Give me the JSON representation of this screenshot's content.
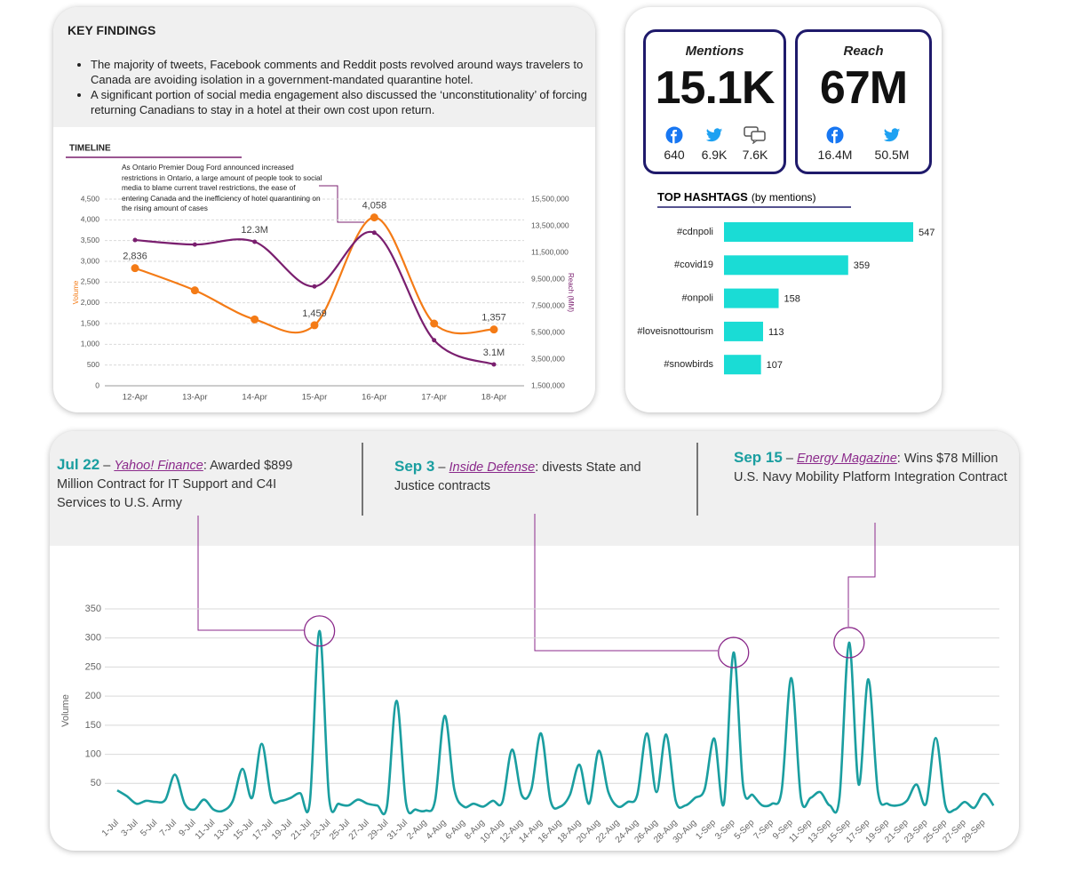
{
  "key_findings": {
    "title": "KEY FINDINGS",
    "bullets": [
      "The majority of tweets, Facebook comments and Reddit posts revolved around ways travelers to Canada are avoiding isolation in a government-mandated quarantine hotel.",
      "A significant portion of social media engagement also discussed the ‘unconstitutionality’ of forcing returning Canadians to stay in a hotel at their own cost upon return."
    ]
  },
  "stats": {
    "mentions": {
      "label": "Mentions",
      "value": "15.1K",
      "facebook": "640",
      "twitter": "6.9K",
      "forums": "7.6K"
    },
    "reach": {
      "label": "Reach",
      "value": "67M",
      "facebook": "16.4M",
      "twitter": "50.5M"
    }
  },
  "chart_data": [
    {
      "type": "line",
      "title": "TIMELINE",
      "annotation": "As Ontario Premier Doug Ford announced increased restrictions in Ontario, a large amount of people took to social media to blame current travel restrictions, the ease of entering Canada and the inefficiency of hotel quarantining on the rising amount of cases",
      "categories": [
        "12-Apr",
        "13-Apr",
        "14-Apr",
        "15-Apr",
        "16-Apr",
        "17-Apr",
        "18-Apr"
      ],
      "ylabel": "Volume",
      "y2label": "Reach (MM)",
      "ylim": [
        0,
        4500
      ],
      "yticks": [
        0,
        500,
        {
          "value": 1000,
          "label": "1,000"
        },
        {
          "value": 1500,
          "label": "1,500"
        },
        {
          "value": 2000,
          "label": "2,000"
        },
        {
          "value": 2500,
          "label": "2,500"
        },
        {
          "value": 3000,
          "label": "3,000"
        },
        {
          "value": 3500,
          "label": "3,500"
        },
        {
          "value": 4000,
          "label": "4,000"
        },
        {
          "value": 4500,
          "label": "4,500"
        }
      ],
      "y2lim": [
        1500000,
        15500000
      ],
      "y2ticks": [
        {
          "value": 1500000,
          "label": "1,500,000"
        },
        {
          "value": 3500000,
          "label": "3,500,000"
        },
        {
          "value": 5500000,
          "label": "5,500,000"
        },
        {
          "value": 7500000,
          "label": "7,500,000"
        },
        {
          "value": 9500000,
          "label": "9,500,000"
        },
        {
          "value": 11500000,
          "label": "11,500,000"
        },
        {
          "value": 13500000,
          "label": "13,500,000"
        },
        {
          "value": 15500000,
          "label": "15,500,000"
        }
      ],
      "grid": true,
      "series": [
        {
          "color": "#f47b16",
          "values": [
            2836,
            2300,
            1600,
            1459,
            4058,
            1500,
            1357
          ],
          "value_labels": [
            "2,836",
            null,
            null,
            "1,459",
            "4,058",
            null,
            "1,357"
          ]
        },
        {
          "color": "#7a1f6f",
          "axis": "y2",
          "values": [
            12430000,
            12090000,
            12300000,
            8950000,
            12980000,
            4920000,
            3100000
          ],
          "value_labels": [
            null,
            null,
            "12.3M",
            null,
            null,
            null,
            "3.1M"
          ]
        }
      ]
    },
    {
      "type": "hbar",
      "title": "TOP HASHTAGS",
      "subtitle": "(by mentions)",
      "categories": [
        "#cdnpoli",
        "#covid19",
        "#onpoli",
        "#loveisnottourism",
        "#snowbirds"
      ],
      "values": [
        547,
        359,
        158,
        113,
        107
      ],
      "color": "#1adcd5"
    },
    {
      "type": "line",
      "ylabel": "Volume",
      "color": "#1a9ea0",
      "grid": true,
      "ylim": [
        0,
        350
      ],
      "yticks": [
        50,
        100,
        150,
        200,
        250,
        300,
        350
      ],
      "categories": [
        "1-Jul",
        null,
        "3-Jul",
        null,
        "5-Jul",
        null,
        "7-Jul",
        null,
        "9-Jul",
        null,
        "11-Jul",
        null,
        "13-Jul",
        null,
        "15-Jul",
        null,
        "17-Jul",
        null,
        "19-Jul",
        null,
        "21-Jul",
        null,
        "23-Jul",
        null,
        "25-Jul",
        null,
        "27-Jul",
        null,
        "29-Jul",
        null,
        "31-Jul",
        null,
        "2-Aug",
        null,
        "4-Aug",
        null,
        "6-Aug",
        null,
        "8-Aug",
        null,
        "10-Aug",
        null,
        "12-Aug",
        null,
        "14-Aug",
        null,
        "16-Aug",
        null,
        "18-Aug",
        null,
        "20-Aug",
        null,
        "22-Aug",
        null,
        "24-Aug",
        null,
        "26-Aug",
        null,
        "28-Aug",
        null,
        "30-Aug",
        null,
        "1-Sep",
        null,
        "3-Sep",
        null,
        "5-Sep",
        null,
        "7-Sep",
        null,
        "9-Sep",
        null,
        "11-Sep",
        null,
        "13-Sep",
        null,
        "15-Sep",
        null,
        "17-Sep",
        null,
        "19-Sep",
        null,
        "21-Sep",
        null,
        "23-Sep",
        null,
        "25-Sep",
        null,
        "27-Sep",
        null,
        "29-Sep",
        null
      ],
      "values": [
        38,
        28,
        15,
        20,
        18,
        22,
        65,
        15,
        5,
        22,
        5,
        3,
        20,
        75,
        25,
        118,
        25,
        20,
        25,
        33,
        18,
        312,
        25,
        15,
        12,
        22,
        15,
        12,
        10,
        192,
        15,
        5,
        3,
        20,
        166,
        40,
        10,
        15,
        10,
        20,
        18,
        108,
        30,
        40,
        136,
        20,
        10,
        30,
        82,
        15,
        106,
        35,
        10,
        18,
        30,
        136,
        35,
        134,
        20,
        12,
        25,
        40,
        127,
        15,
        275,
        45,
        30,
        12,
        15,
        38,
        231,
        25,
        25,
        35,
        12,
        25,
        292,
        48,
        229,
        35,
        15,
        12,
        20,
        48,
        15,
        128,
        12,
        5,
        18,
        8,
        32,
        12
      ],
      "annotations": [
        {
          "date": "Jul 22",
          "dash": "–",
          "source": "Yahoo! Finance",
          "text": ": Awarded $899 Million Contract for IT Support and C4I Services to U.S. Army"
        },
        {
          "date": "Sep 3",
          "dash": "–",
          "source": "Inside Defense",
          "text": ": divests State and Justice contracts"
        },
        {
          "date": "Sep 15",
          "dash": "–",
          "source": "Energy Magazine",
          "text": ": Wins $78 Million U.S. Navy Mobility Platform Integration Contract"
        }
      ]
    }
  ]
}
